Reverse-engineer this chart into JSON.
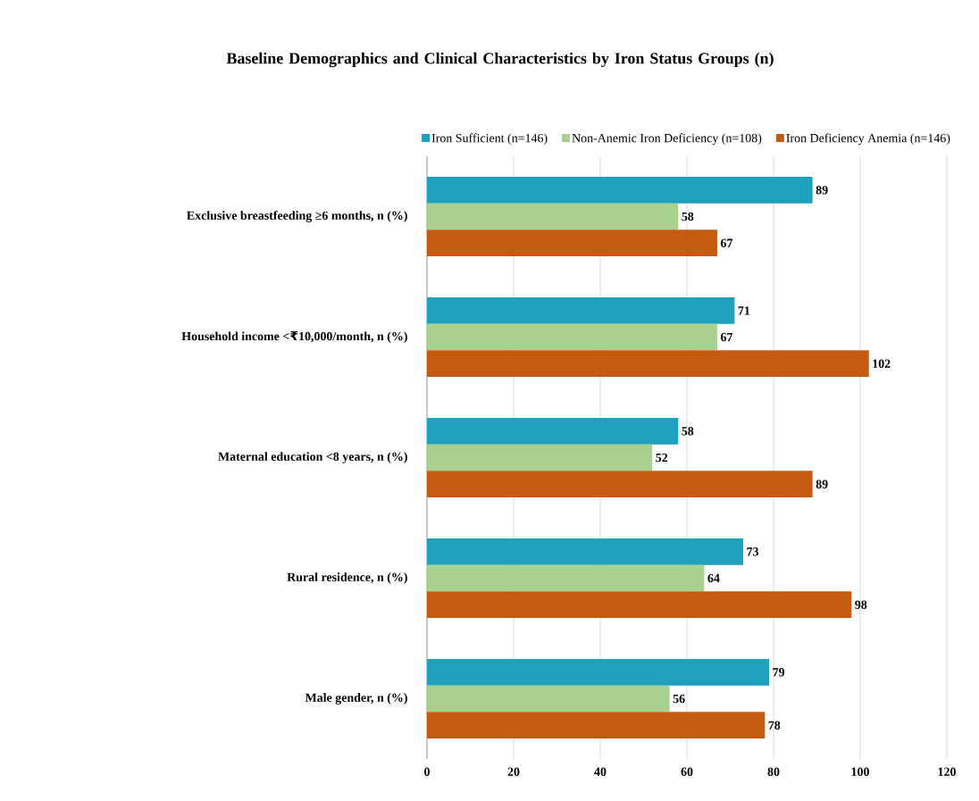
{
  "chart_data": {
    "type": "bar",
    "orientation": "horizontal",
    "title": "Baseline Demographics and Clinical Characteristics by Iron Status Groups (n)",
    "categories": [
      "Exclusive breastfeeding ≥6 months, n (%)",
      "Household income <₹10,000/month, n (%)",
      "Maternal education <8 years, n (%)",
      "Rural residence, n (%)",
      "Male gender, n (%)"
    ],
    "series": [
      {
        "name": "Iron Sufficient (n=146)",
        "color": "#1fa0bd",
        "values": [
          89,
          71,
          58,
          73,
          79
        ]
      },
      {
        "name": "Non-Anemic Iron Deficiency (n=108)",
        "color": "#a9d18e",
        "values": [
          58,
          67,
          52,
          64,
          56
        ]
      },
      {
        "name": "Iron Deficiency Anemia (n=146)",
        "color": "#c55a11",
        "values": [
          67,
          102,
          89,
          98,
          78
        ]
      }
    ],
    "xlim": [
      0,
      120
    ],
    "xticks": [
      0,
      20,
      40,
      60,
      80,
      100,
      120
    ],
    "grid": "x",
    "legend": "top",
    "data_labels": true
  }
}
